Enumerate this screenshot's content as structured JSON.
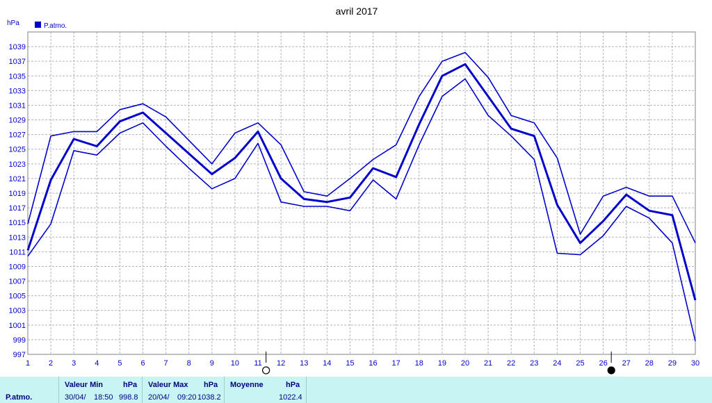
{
  "chart_data": {
    "type": "line",
    "title": "avril 2017",
    "ylabel": "hPa",
    "ylim": [
      997,
      1041
    ],
    "yticks": [
      997,
      999,
      1001,
      1003,
      1005,
      1007,
      1009,
      1011,
      1013,
      1015,
      1017,
      1019,
      1021,
      1023,
      1025,
      1027,
      1029,
      1031,
      1033,
      1035,
      1037,
      1039
    ],
    "x": [
      1,
      2,
      3,
      4,
      5,
      6,
      7,
      8,
      9,
      10,
      11,
      12,
      13,
      14,
      15,
      16,
      17,
      18,
      19,
      20,
      21,
      22,
      23,
      24,
      25,
      26,
      27,
      28,
      29,
      30
    ],
    "grid": true,
    "legend": {
      "position": "top-left",
      "entries": [
        "P.atmo."
      ]
    },
    "series": [
      {
        "role": "max",
        "color": "#0000cc",
        "values": [
          1014.8,
          1026.8,
          1027.4,
          1027.4,
          1030.4,
          1031.2,
          1029.4,
          1026.2,
          1023.0,
          1027.2,
          1028.6,
          1025.6,
          1019.2,
          1018.6,
          1021.0,
          1023.6,
          1025.6,
          1032.2,
          1037.0,
          1038.2,
          1034.8,
          1029.6,
          1028.6,
          1023.8,
          1013.4,
          1018.6,
          1019.8,
          1018.6,
          1018.6,
          1012.2
        ]
      },
      {
        "role": "mean",
        "color": "#0000cc",
        "values": [
          1011.2,
          1020.8,
          1026.4,
          1025.4,
          1028.8,
          1030.0,
          1027.2,
          1024.4,
          1021.6,
          1023.8,
          1027.4,
          1021.0,
          1018.2,
          1017.8,
          1018.4,
          1022.4,
          1021.2,
          1028.4,
          1035.0,
          1036.6,
          1032.2,
          1027.8,
          1026.8,
          1017.4,
          1012.2,
          1015.2,
          1018.8,
          1016.6,
          1016.0,
          1004.4
        ]
      },
      {
        "role": "min",
        "color": "#0000cc",
        "values": [
          1010.4,
          1014.8,
          1024.8,
          1024.2,
          1027.2,
          1028.6,
          1025.4,
          1022.4,
          1019.6,
          1021.0,
          1025.8,
          1017.8,
          1017.2,
          1017.2,
          1016.6,
          1020.8,
          1018.2,
          1025.6,
          1032.2,
          1034.6,
          1029.6,
          1026.8,
          1023.6,
          1010.8,
          1010.6,
          1013.2,
          1017.2,
          1015.6,
          1012.2,
          998.8
        ]
      }
    ],
    "moon_phases": [
      {
        "day": 11,
        "phase": "full",
        "symbol": "○"
      },
      {
        "day": 26,
        "phase": "new",
        "symbol": "●"
      }
    ]
  },
  "legend": {
    "label": "P.atmo.",
    "color": "#0000cc"
  },
  "summary": {
    "row_label": "P.atmo.",
    "min": {
      "header": "Valeur Min",
      "unit": "hPa",
      "date": "30/04/",
      "time": "18:50",
      "value": "998.8"
    },
    "max": {
      "header": "Valeur Max",
      "unit": "hPa",
      "date": "20/04/",
      "time": "09:20",
      "value": "1038.2"
    },
    "mean": {
      "header": "Moyenne",
      "unit": "hPa",
      "value": "1022.4"
    }
  }
}
